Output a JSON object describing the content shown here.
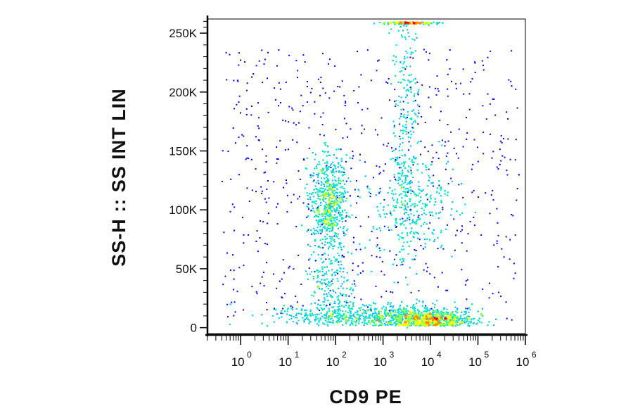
{
  "chart_data": {
    "type": "scatter",
    "subtype": "flow-cytometry-density",
    "xlabel": "CD9 PE",
    "ylabel": "SS-H :: SS INT LIN",
    "x_scale": "log",
    "y_scale": "linear",
    "xlim": [
      0.2,
      1000000
    ],
    "ylim": [
      -5000,
      262000
    ],
    "x_ticks": [
      {
        "base": "10",
        "exp": "0",
        "value": 1
      },
      {
        "base": "10",
        "exp": "1",
        "value": 10
      },
      {
        "base": "10",
        "exp": "2",
        "value": 100
      },
      {
        "base": "10",
        "exp": "3",
        "value": 1000
      },
      {
        "base": "10",
        "exp": "4",
        "value": 10000
      },
      {
        "base": "10",
        "exp": "5",
        "value": 100000
      },
      {
        "base": "10",
        "exp": "6",
        "value": 1000000
      }
    ],
    "y_ticks": [
      {
        "label": "0",
        "value": 0
      },
      {
        "label": "50K",
        "value": 50000
      },
      {
        "label": "100K",
        "value": 100000
      },
      {
        "label": "150K",
        "value": 150000
      },
      {
        "label": "200K",
        "value": 200000
      },
      {
        "label": "250K",
        "value": 250000
      }
    ],
    "grid": false,
    "colormap": [
      "#0000ff",
      "#00b4ff",
      "#00e6c8",
      "#96ff3c",
      "#ffff00",
      "#ff8c00",
      "#ff0000"
    ],
    "populations": [
      {
        "x_center": 70,
        "y_center": 105000,
        "x_spread_decades": 0.2,
        "y_spread": 20000,
        "weight": 0.22
      },
      {
        "x_center": 300,
        "y_center": 10000,
        "x_spread_decades": 0.8,
        "y_spread": 5000,
        "weight": 0.18
      },
      {
        "x_center": 9000,
        "y_center": 6000,
        "x_spread_decades": 0.45,
        "y_spread": 5000,
        "weight": 0.3
      },
      {
        "x_center": 4000,
        "y_center": 105000,
        "x_spread_decades": 0.45,
        "y_spread": 20000,
        "weight": 0.1
      },
      {
        "x_center": 3000,
        "y_center": 170000,
        "x_spread_decades": 0.15,
        "y_spread": 60000,
        "weight": 0.1
      },
      {
        "x_center": 80,
        "y_center": 40000,
        "x_spread_decades": 0.25,
        "y_spread": 15000,
        "weight": 0.06
      },
      {
        "x_center": 3500,
        "y_center": 260000,
        "x_spread_decades": 0.3,
        "y_spread": 1500,
        "weight": 0.04
      }
    ]
  }
}
